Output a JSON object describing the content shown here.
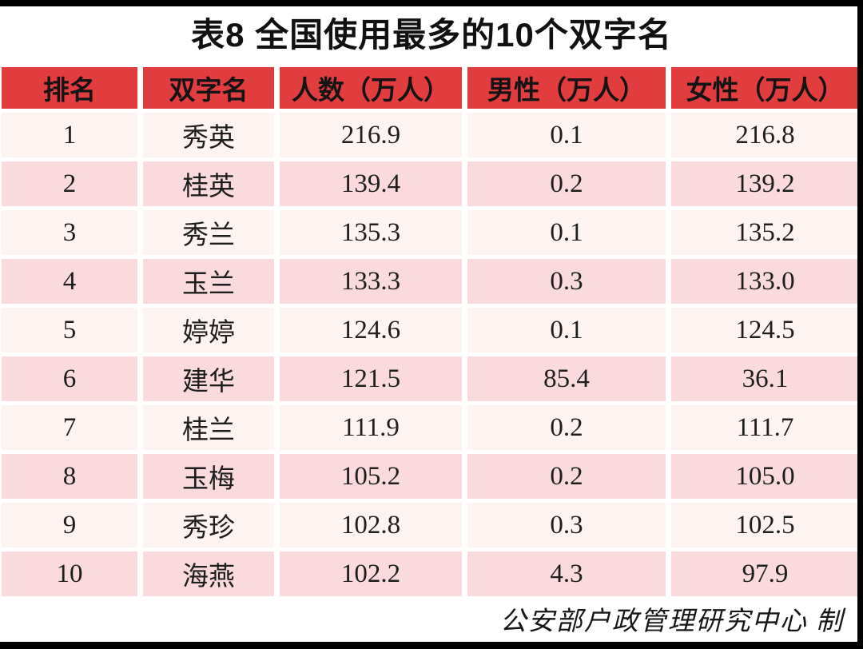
{
  "ui": {
    "colors": {
      "frame": "#000000",
      "header_bg": "#e13c3e",
      "header_text": "#141414",
      "row_odd": "#fdf3f1",
      "row_even": "#fadadc",
      "body_text": "#1e1e1e"
    }
  },
  "chart_data": {
    "type": "table",
    "title": "表8 全国使用最多的10个双字名",
    "columns": [
      "排名",
      "双字名",
      "人数（万人）",
      "男性（万人）",
      "女性（万人）"
    ],
    "rows": [
      [
        "1",
        "秀英",
        "216.9",
        "0.1",
        "216.8"
      ],
      [
        "2",
        "桂英",
        "139.4",
        "0.2",
        "139.2"
      ],
      [
        "3",
        "秀兰",
        "135.3",
        "0.1",
        "135.2"
      ],
      [
        "4",
        "玉兰",
        "133.3",
        "0.3",
        "133.0"
      ],
      [
        "5",
        "婷婷",
        "124.6",
        "0.1",
        "124.5"
      ],
      [
        "6",
        "建华",
        "121.5",
        "85.4",
        "36.1"
      ],
      [
        "7",
        "桂兰",
        "111.9",
        "0.2",
        "111.7"
      ],
      [
        "8",
        "玉梅",
        "105.2",
        "0.2",
        "105.0"
      ],
      [
        "9",
        "秀珍",
        "102.8",
        "0.3",
        "102.5"
      ],
      [
        "10",
        "海燕",
        "102.2",
        "4.3",
        "97.9"
      ]
    ],
    "credit": "公安部户政管理研究中心 制"
  }
}
